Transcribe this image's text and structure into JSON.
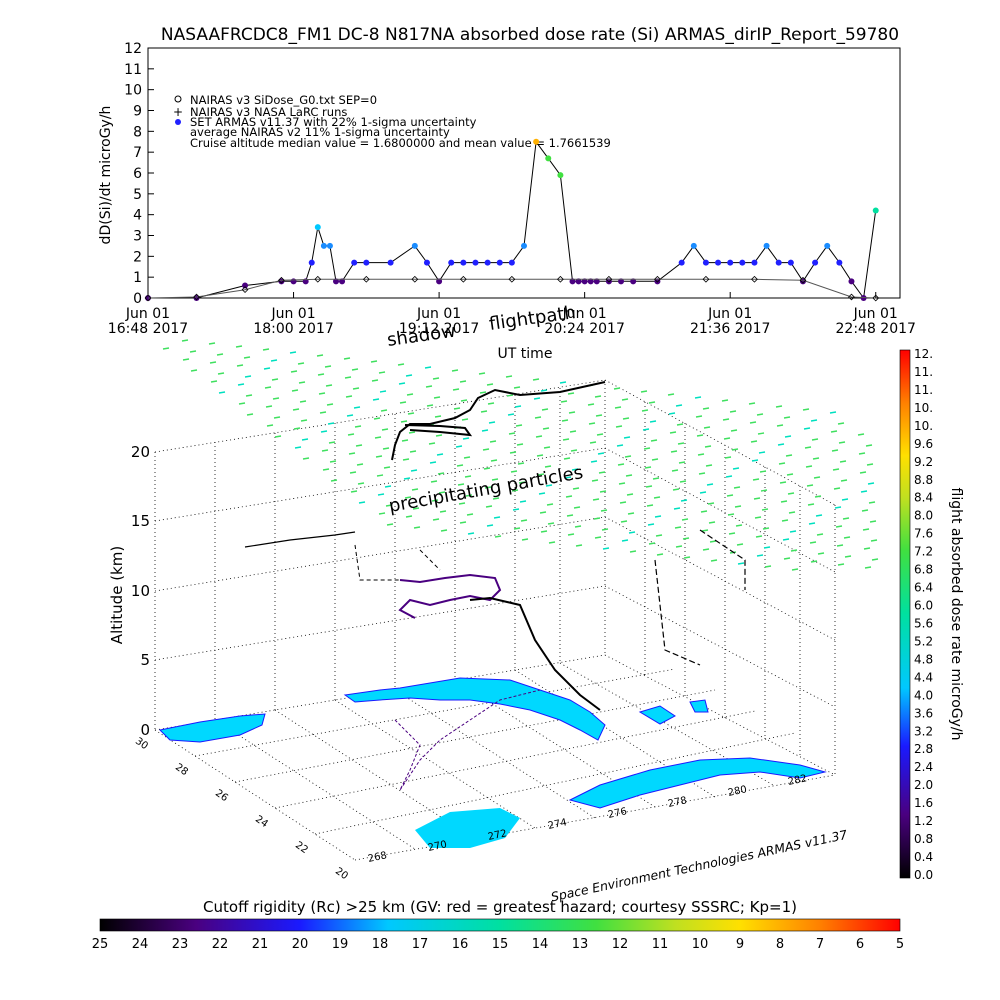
{
  "title": "NASAAFRCDC8_FM1 DC-8   N817NA absorbed dose rate (Si) ARMAS_dirIP_Report_59780",
  "chart_data": [
    {
      "type": "line",
      "panel": "time-series",
      "ylabel": "dD(Si)/dt microGy/h",
      "xlabel": "UT time",
      "ylim": [
        0,
        12
      ],
      "yticks": [
        "0",
        "1",
        "2",
        "3",
        "4",
        "5",
        "6",
        "7",
        "8",
        "9",
        "10",
        "11",
        "12"
      ],
      "xticks": [
        {
          "line1": "Jun 01",
          "line2": "16:48 2017"
        },
        {
          "line1": "Jun 01",
          "line2": "18:00 2017"
        },
        {
          "line1": "Jun 01",
          "line2": "19:12 2017"
        },
        {
          "line1": "Jun 01",
          "line2": "20:24 2017"
        },
        {
          "line1": "Jun 01",
          "line2": "21:36 2017"
        },
        {
          "line1": "Jun 01",
          "line2": "22:48 2017"
        }
      ],
      "legend": [
        "NAIRAS v3 SiDose_G0.txt SEP=0",
        "NAIRAS v3 NASA LaRC runs",
        "SET ARMAS v11.37 with 22% 1-sigma uncertainty",
        "average NAIRAS v2 11% 1-sigma uncertainty",
        "Cruise altitude median value = 1.6800000 and mean value = 1.7661539"
      ],
      "legend_placement": "top-left",
      "series": [
        {
          "name": "SET ARMAS v11.37 with 22% 1-sigma uncertainty",
          "marker": "dot",
          "x_hours": [
            16.8,
            17.2,
            17.6,
            17.9,
            18.0,
            18.1,
            18.15,
            18.2,
            18.25,
            18.3,
            18.35,
            18.4,
            18.5,
            18.6,
            18.8,
            19.0,
            19.1,
            19.2,
            19.3,
            19.4,
            19.5,
            19.6,
            19.7,
            19.8,
            19.9,
            20.0,
            20.1,
            20.2,
            20.3,
            20.35,
            20.4,
            20.45,
            20.5,
            20.6,
            20.7,
            20.8,
            21.0,
            21.2,
            21.3,
            21.4,
            21.5,
            21.6,
            21.7,
            21.8,
            21.9,
            22.0,
            22.1,
            22.2,
            22.3,
            22.4,
            22.5,
            22.6,
            22.7,
            22.8
          ],
          "values": [
            0,
            0,
            0.6,
            0.8,
            0.8,
            0.8,
            1.7,
            3.4,
            2.5,
            2.5,
            0.8,
            0.8,
            1.7,
            1.7,
            1.7,
            2.5,
            1.7,
            0.8,
            1.7,
            1.7,
            1.7,
            1.7,
            1.7,
            1.7,
            2.5,
            7.5,
            6.7,
            5.9,
            0.8,
            0.8,
            0.8,
            0.8,
            0.8,
            0.8,
            0.8,
            0.8,
            0.8,
            1.7,
            2.5,
            1.7,
            1.7,
            1.7,
            1.7,
            1.7,
            2.5,
            1.7,
            1.7,
            0.8,
            1.7,
            2.5,
            1.7,
            0.8,
            0,
            4.2
          ],
          "color": "#2020ff"
        },
        {
          "name": "NAIRAS v3 SiDose_G0.txt SEP=0",
          "marker": "diamond",
          "x_hours": [
            16.8,
            17.2,
            17.6,
            17.9,
            18.2,
            18.6,
            19.0,
            19.4,
            19.8,
            20.2,
            20.6,
            21.0,
            21.4,
            21.8,
            22.2,
            22.6,
            22.8
          ],
          "values": [
            0,
            0.05,
            0.4,
            0.85,
            0.9,
            0.9,
            0.9,
            0.9,
            0.9,
            0.9,
            0.9,
            0.9,
            0.9,
            0.9,
            0.85,
            0.05,
            0
          ],
          "color": "#000000"
        }
      ]
    },
    {
      "type": "scatter",
      "panel": "3d-trajectory",
      "ylabel": "Altitude (km)",
      "zticks": [
        "0",
        "5",
        "10",
        "15",
        "20"
      ],
      "lat_ticks": [
        "30",
        "28",
        "26",
        "24",
        "22",
        "20"
      ],
      "lon_ticks": [
        "268",
        "270",
        "272",
        "274",
        "276",
        "278",
        "280",
        "282"
      ],
      "annotations": [
        "shadow",
        "flightpath",
        "precipitating particles"
      ],
      "footer": "Space Environment Technologies ARMAS v11.37"
    },
    {
      "type": "heatmap",
      "panel": "dose-rate-colorbar",
      "label": "flight absorbed dose rate microGy/h",
      "ticks": [
        "0.0",
        "0.4",
        "0.8",
        "1.2",
        "1.6",
        "2.0",
        "2.4",
        "2.8",
        "3.2",
        "3.6",
        "4.0",
        "4.4",
        "4.8",
        "5.2",
        "5.6",
        "6.0",
        "6.4",
        "6.8",
        "7.2",
        "7.6",
        "8.0",
        "8.4",
        "8.8",
        "9.2",
        "9.6",
        "10.",
        "10.",
        "11.",
        "11.",
        "12."
      ],
      "range": [
        0,
        12
      ]
    },
    {
      "type": "heatmap",
      "panel": "cutoff-rigidity-colorbar",
      "label": "Cutoff rigidity (Rc) >25 km (GV: red = greatest hazard; courtesy SSSRC; Kp=1)",
      "ticks": [
        "25",
        "24",
        "23",
        "22",
        "21",
        "20",
        "19",
        "18",
        "17",
        "16",
        "15",
        "14",
        "13",
        "12",
        "11",
        "10",
        "9",
        "8",
        "7",
        "6",
        "5"
      ],
      "range": [
        25,
        5
      ]
    }
  ]
}
